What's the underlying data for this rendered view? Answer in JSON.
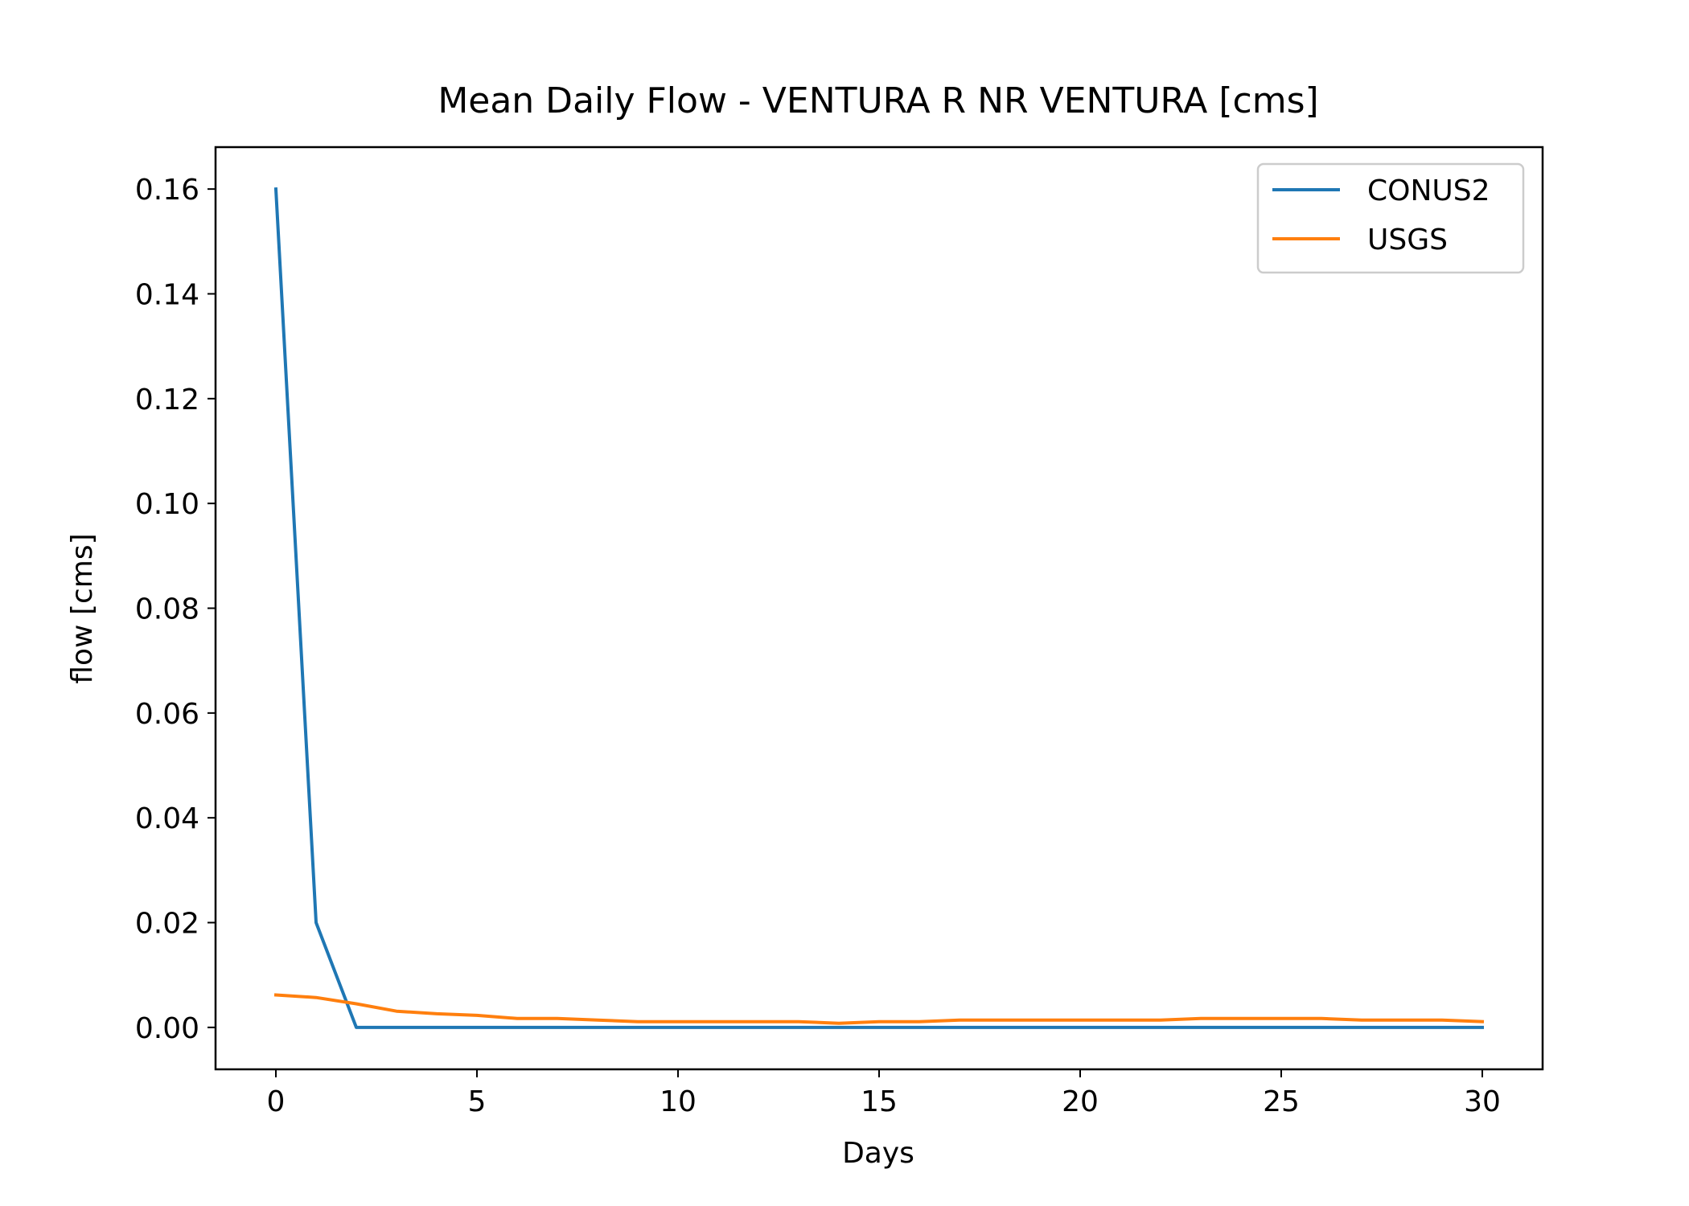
{
  "chart_data": {
    "type": "line",
    "title": "Mean Daily Flow - VENTURA R NR VENTURA [cms]",
    "xlabel": "Days",
    "ylabel": "flow [cms]",
    "xlim": [
      -1.5,
      31.5
    ],
    "ylim": [
      -0.008,
      0.168
    ],
    "xticks": [
      0,
      5,
      10,
      15,
      20,
      25,
      30
    ],
    "yticks": [
      0.0,
      0.02,
      0.04,
      0.06,
      0.08,
      0.1,
      0.12,
      0.14,
      0.16
    ],
    "xtick_labels": [
      "0",
      "5",
      "10",
      "15",
      "20",
      "25",
      "30"
    ],
    "ytick_labels": [
      "0.00",
      "0.02",
      "0.04",
      "0.06",
      "0.08",
      "0.10",
      "0.12",
      "0.14",
      "0.16"
    ],
    "grid": false,
    "legend_position": "top-right",
    "x": [
      0,
      1,
      2,
      3,
      4,
      5,
      6,
      7,
      8,
      9,
      10,
      11,
      12,
      13,
      14,
      15,
      16,
      17,
      18,
      19,
      20,
      21,
      22,
      23,
      24,
      25,
      26,
      27,
      28,
      29,
      30
    ],
    "series": [
      {
        "name": "CONUS2",
        "color": "#1f77b4",
        "values": [
          0.16,
          0.02,
          0.0,
          0.0,
          0.0,
          0.0,
          0.0,
          0.0,
          0.0,
          0.0,
          0.0,
          0.0,
          0.0,
          0.0,
          0.0,
          0.0,
          0.0,
          0.0,
          0.0,
          0.0,
          0.0,
          0.0,
          0.0,
          0.0,
          0.0,
          0.0,
          0.0,
          0.0,
          0.0,
          0.0,
          0.0
        ]
      },
      {
        "name": "USGS",
        "color": "#ff7f0e",
        "values": [
          0.0062,
          0.0057,
          0.0045,
          0.0031,
          0.0026,
          0.0023,
          0.0017,
          0.0017,
          0.0014,
          0.0011,
          0.0011,
          0.0011,
          0.0011,
          0.0011,
          0.0008,
          0.0011,
          0.0011,
          0.0014,
          0.0014,
          0.0014,
          0.0014,
          0.0014,
          0.0014,
          0.0017,
          0.0017,
          0.0017,
          0.0017,
          0.0014,
          0.0014,
          0.0014,
          0.0011
        ]
      }
    ]
  }
}
